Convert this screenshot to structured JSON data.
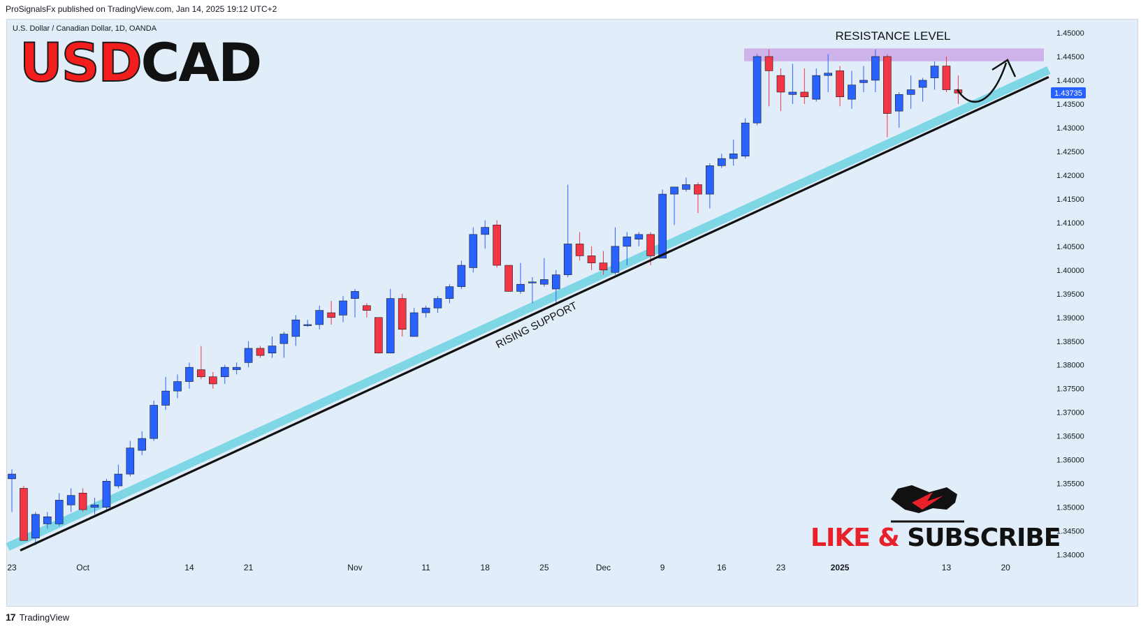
{
  "header": {
    "attribution": "ProSignalsFx published on TradingView.com, Jan 14, 2025 19:12 UTC+2"
  },
  "symbol": {
    "description": "U.S. Dollar / Canadian Dollar, 1D, OANDA"
  },
  "logo": {
    "part1": "USD",
    "part2": "CAD"
  },
  "cta": {
    "part1": "LIKE &",
    "part2": " SUBSCRIBE"
  },
  "footer": {
    "brand": "TradingView",
    "brand_mark": "17"
  },
  "colors": {
    "background": "#e1eef9",
    "bull": "#2962ff",
    "bear": "#f23645",
    "support_band": "#7fd7e6",
    "resistance_band": "#c9a8e8",
    "last_price_tag": "#2962ff"
  },
  "chart_data": {
    "type": "candlestick",
    "title": "U.S. Dollar / Canadian Dollar, 1D, OANDA",
    "ylim": [
      1.337,
      1.4525
    ],
    "price_ticks": [
      "1.45000",
      "1.44500",
      "1.44000",
      "1.43500",
      "1.43000",
      "1.42500",
      "1.42000",
      "1.41500",
      "1.41000",
      "1.40500",
      "1.40000",
      "1.39500",
      "1.39000",
      "1.38500",
      "1.38000",
      "1.37500",
      "1.37000",
      "1.36500",
      "1.36000",
      "1.35500",
      "1.35000",
      "1.34500",
      "1.34000"
    ],
    "last_price": "1.43735",
    "time_ticks": [
      {
        "label": "23",
        "index": 0
      },
      {
        "label": "Oct",
        "index": 6
      },
      {
        "label": "14",
        "index": 15
      },
      {
        "label": "21",
        "index": 20
      },
      {
        "label": "Nov",
        "index": 29
      },
      {
        "label": "11",
        "index": 35
      },
      {
        "label": "18",
        "index": 40
      },
      {
        "label": "25",
        "index": 45
      },
      {
        "label": "Dec",
        "index": 50
      },
      {
        "label": "9",
        "index": 55
      },
      {
        "label": "16",
        "index": 60
      },
      {
        "label": "23",
        "index": 65
      },
      {
        "label": "2025",
        "index": 70,
        "bold": true
      },
      {
        "label": "13",
        "index": 79
      },
      {
        "label": "20",
        "index": 84
      }
    ],
    "candles": [
      [
        1.356,
        1.358,
        1.349,
        1.357
      ],
      [
        1.354,
        1.3545,
        1.343,
        1.343
      ],
      [
        1.3435,
        1.349,
        1.342,
        1.3485
      ],
      [
        1.3465,
        1.349,
        1.3455,
        1.348
      ],
      [
        1.3465,
        1.353,
        1.346,
        1.3515
      ],
      [
        1.3505,
        1.354,
        1.349,
        1.3525
      ],
      [
        1.353,
        1.354,
        1.349,
        1.3495
      ],
      [
        1.35,
        1.352,
        1.3485,
        1.3505
      ],
      [
        1.35,
        1.356,
        1.3495,
        1.3555
      ],
      [
        1.3545,
        1.359,
        1.354,
        1.357
      ],
      [
        1.357,
        1.364,
        1.3565,
        1.3625
      ],
      [
        1.362,
        1.366,
        1.361,
        1.3645
      ],
      [
        1.3645,
        1.3725,
        1.364,
        1.3715
      ],
      [
        1.3715,
        1.3775,
        1.3705,
        1.3745
      ],
      [
        1.3745,
        1.378,
        1.373,
        1.3765
      ],
      [
        1.3765,
        1.3805,
        1.375,
        1.3795
      ],
      [
        1.379,
        1.384,
        1.377,
        1.3775
      ],
      [
        1.3775,
        1.3785,
        1.375,
        1.376
      ],
      [
        1.3775,
        1.38,
        1.376,
        1.3795
      ],
      [
        1.379,
        1.3805,
        1.378,
        1.3795
      ],
      [
        1.3805,
        1.385,
        1.3795,
        1.3835
      ],
      [
        1.3835,
        1.384,
        1.3815,
        1.382
      ],
      [
        1.3825,
        1.386,
        1.3815,
        1.384
      ],
      [
        1.3845,
        1.387,
        1.3815,
        1.3865
      ],
      [
        1.386,
        1.3905,
        1.384,
        1.3895
      ],
      [
        1.3885,
        1.3895,
        1.388,
        1.3885
      ],
      [
        1.3885,
        1.3925,
        1.3875,
        1.3915
      ],
      [
        1.391,
        1.3935,
        1.3885,
        1.39
      ],
      [
        1.3905,
        1.3945,
        1.389,
        1.3935
      ],
      [
        1.394,
        1.396,
        1.39,
        1.3955
      ],
      [
        1.3925,
        1.393,
        1.39,
        1.3915
      ],
      [
        1.39,
        1.39,
        1.3825,
        1.3825
      ],
      [
        1.3825,
        1.396,
        1.3825,
        1.394
      ],
      [
        1.394,
        1.395,
        1.386,
        1.3875
      ],
      [
        1.386,
        1.392,
        1.386,
        1.391
      ],
      [
        1.391,
        1.3925,
        1.39,
        1.392
      ],
      [
        1.392,
        1.3945,
        1.391,
        1.394
      ],
      [
        1.394,
        1.397,
        1.393,
        1.3965
      ],
      [
        1.3965,
        1.402,
        1.396,
        1.401
      ],
      [
        1.4005,
        1.409,
        1.3995,
        1.4075
      ],
      [
        1.4075,
        1.4105,
        1.4045,
        1.409
      ],
      [
        1.4095,
        1.4105,
        1.4005,
        1.401
      ],
      [
        1.401,
        1.401,
        1.3955,
        1.3955
      ],
      [
        1.3955,
        1.4015,
        1.395,
        1.397
      ],
      [
        1.3975,
        1.3985,
        1.393,
        1.3975
      ],
      [
        1.397,
        1.4025,
        1.3965,
        1.398
      ],
      [
        1.396,
        1.4,
        1.393,
        1.399
      ],
      [
        1.399,
        1.418,
        1.3985,
        1.4055
      ],
      [
        1.4055,
        1.408,
        1.402,
        1.403
      ],
      [
        1.403,
        1.405,
        1.4,
        1.4015
      ],
      [
        1.4015,
        1.404,
        1.399,
        1.4
      ],
      [
        1.3995,
        1.409,
        1.399,
        1.405
      ],
      [
        1.405,
        1.408,
        1.401,
        1.407
      ],
      [
        1.4065,
        1.408,
        1.405,
        1.4075
      ],
      [
        1.4075,
        1.408,
        1.401,
        1.403
      ],
      [
        1.4025,
        1.417,
        1.4025,
        1.416
      ],
      [
        1.416,
        1.4175,
        1.4095,
        1.4175
      ],
      [
        1.417,
        1.4195,
        1.4165,
        1.418
      ],
      [
        1.418,
        1.4185,
        1.412,
        1.416
      ],
      [
        1.416,
        1.4225,
        1.413,
        1.422
      ],
      [
        1.422,
        1.4245,
        1.4215,
        1.4235
      ],
      [
        1.4235,
        1.4275,
        1.422,
        1.4245
      ],
      [
        1.424,
        1.432,
        1.4235,
        1.431
      ],
      [
        1.431,
        1.4455,
        1.4305,
        1.445
      ],
      [
        1.445,
        1.4465,
        1.4345,
        1.442
      ],
      [
        1.441,
        1.4425,
        1.4335,
        1.4375
      ],
      [
        1.437,
        1.4435,
        1.435,
        1.4375
      ],
      [
        1.4375,
        1.4425,
        1.435,
        1.4365
      ],
      [
        1.436,
        1.4425,
        1.4355,
        1.441
      ],
      [
        1.441,
        1.4455,
        1.4375,
        1.4415
      ],
      [
        1.442,
        1.443,
        1.4345,
        1.4365
      ],
      [
        1.436,
        1.442,
        1.434,
        1.439
      ],
      [
        1.4395,
        1.443,
        1.4375,
        1.44
      ],
      [
        1.44,
        1.4465,
        1.4375,
        1.445
      ],
      [
        1.445,
        1.4455,
        1.428,
        1.433
      ],
      [
        1.4335,
        1.4375,
        1.43,
        1.437
      ],
      [
        1.437,
        1.441,
        1.434,
        1.438
      ],
      [
        1.4385,
        1.4405,
        1.4355,
        1.44
      ],
      [
        1.4405,
        1.444,
        1.438,
        1.443
      ],
      [
        1.443,
        1.445,
        1.4375,
        1.438
      ],
      [
        1.438,
        1.441,
        1.435,
        1.4373
      ]
    ],
    "annotations": {
      "resistance_label": "RESISTANCE LEVEL",
      "resistance_zone": [
        1.444,
        1.4467
      ],
      "support_label": "RISING SUPPORT",
      "support_line": {
        "start": [
          0,
          1.3412
        ],
        "end": [
          87,
          1.4395
        ]
      }
    }
  }
}
